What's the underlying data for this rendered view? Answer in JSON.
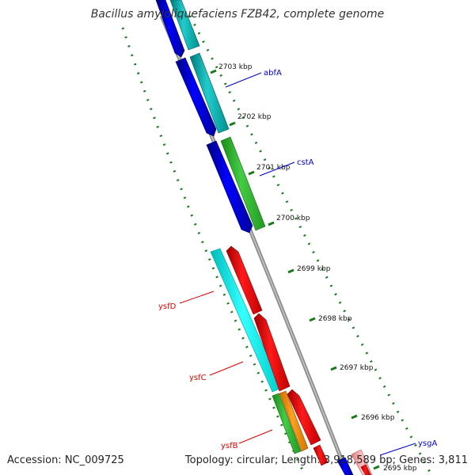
{
  "title": "Bacillus amyloliquefaciens FZB42, complete genome",
  "footer": {
    "accession": "Accession: NC_009725",
    "topology": "Topology: circular; Length: 3,918,589 bp; Genes: 3,811"
  },
  "colors": {
    "backbone": "#8c8c8c",
    "ruler_major": "#1a7a1a",
    "ruler_dots": "#1a7a1a",
    "gene_forward": "#0000ff",
    "gene_forward_alt": "#00c8c8",
    "gene_green": "#33bb33",
    "gene_reverse": "#ff0000",
    "gene_cyan": "#00ffff",
    "gene_orange": "#ff9900",
    "label_forward": "#0000cc",
    "label_reverse": "#dd0000"
  },
  "scale_ticks": [
    {
      "label": "2703 kbp"
    },
    {
      "label": "2702 kbp"
    },
    {
      "label": "2701 kbp"
    },
    {
      "label": "2700 kbp"
    },
    {
      "label": "2699 kbp"
    },
    {
      "label": "2698 kbp"
    },
    {
      "label": "2697 kbp"
    },
    {
      "label": "2696 kbp"
    },
    {
      "label": "2695 kbp"
    }
  ],
  "gene_labels": [
    {
      "name": "abfA",
      "strand": "forward"
    },
    {
      "name": "cstA",
      "strand": "forward"
    },
    {
      "name": "ysfD",
      "strand": "reverse"
    },
    {
      "name": "ysfC",
      "strand": "reverse"
    },
    {
      "name": "ysfB",
      "strand": "reverse"
    },
    {
      "name": "ysgA",
      "strand": "forward"
    }
  ]
}
